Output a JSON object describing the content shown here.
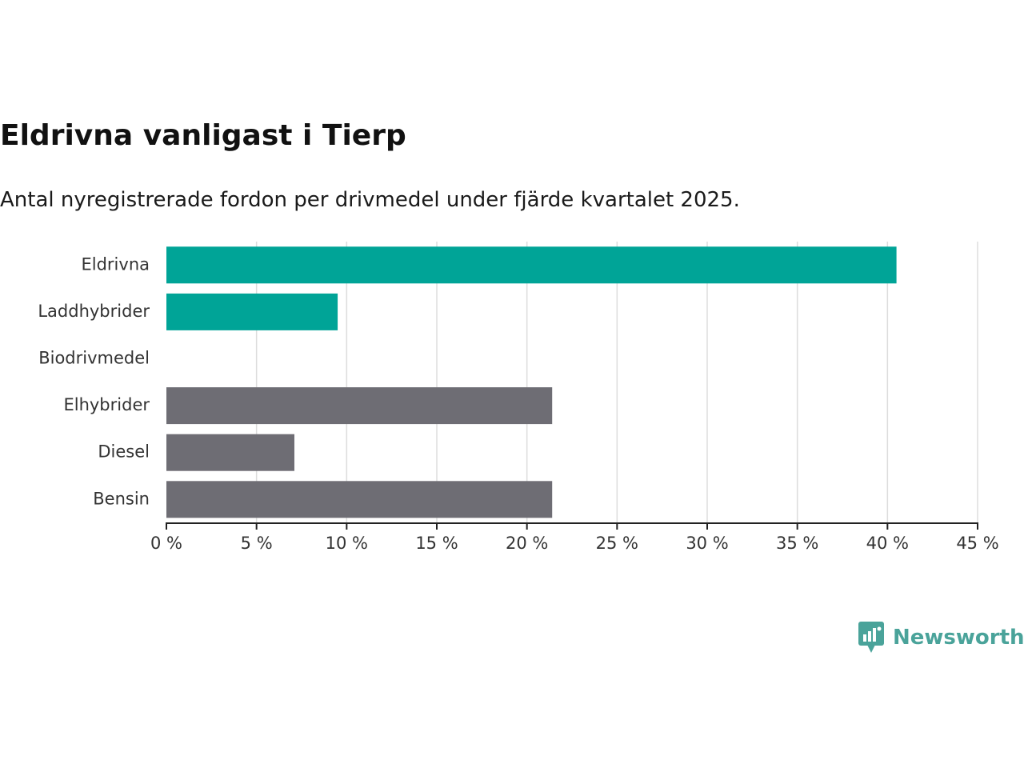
{
  "title": "Eldrivna vanligast i Tierp",
  "subtitle": "Antal nyregistrerade fordon per drivmedel under fjärde kvartalet 2025.",
  "brand": {
    "name": "Newsworthy",
    "icon": "bar-chart-speech-bubble-icon",
    "color": "#4aa39a"
  },
  "colors": {
    "highlight": "#00a497",
    "other": "#6e6d74",
    "grid": "#dddddd",
    "axis": "#222222"
  },
  "chart_data": {
    "type": "bar",
    "orientation": "horizontal",
    "categories": [
      "Eldrivna",
      "Laddhybrider",
      "Biodrivmedel",
      "Elhybrider",
      "Diesel",
      "Bensin"
    ],
    "values": [
      40.5,
      9.5,
      0,
      21.4,
      7.1,
      21.4
    ],
    "highlighted": [
      true,
      true,
      true,
      false,
      false,
      false
    ],
    "xlim": [
      0,
      45
    ],
    "xticks": [
      0,
      5,
      10,
      15,
      20,
      25,
      30,
      35,
      40,
      45
    ],
    "tick_labels": [
      "0 %",
      "5 %",
      "10 %",
      "15 %",
      "20 %",
      "25 %",
      "30 %",
      "35 %",
      "40 %",
      "45 %"
    ],
    "grid": true,
    "legend": "none"
  }
}
